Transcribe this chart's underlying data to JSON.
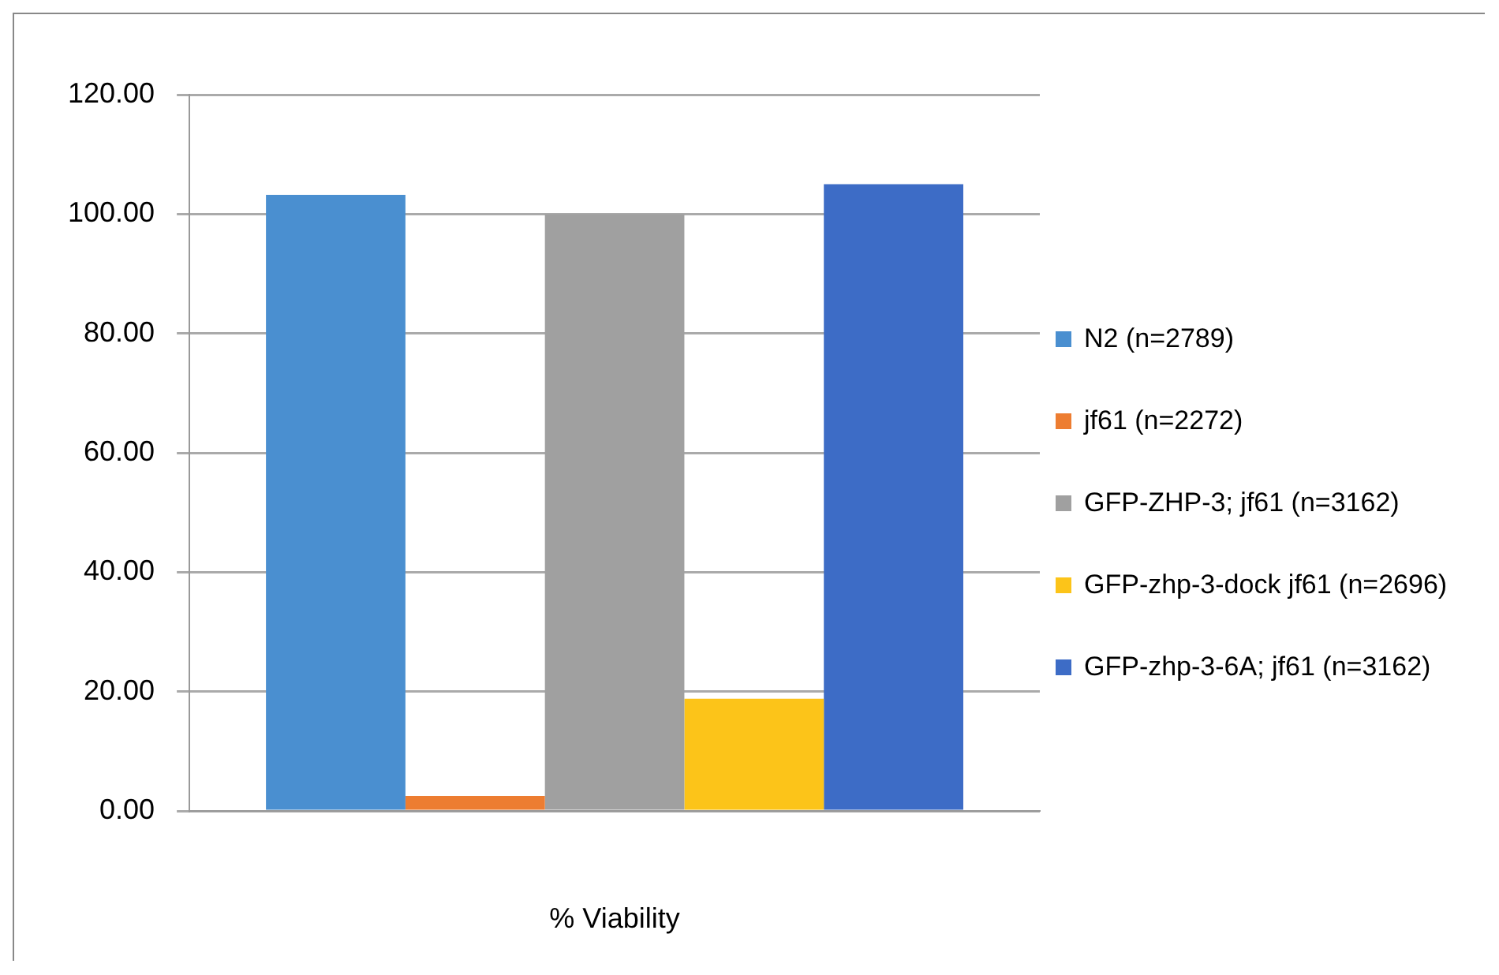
{
  "chart_data": {
    "type": "bar",
    "xlabel": "% Viability",
    "categories": [
      null
    ],
    "series": [
      {
        "name": "N2 (n=2789)",
        "color": "#4a8fd0",
        "values": [
          103.2
        ]
      },
      {
        "name": "jf61 (n=2272)",
        "color": "#ed7d31",
        "values": [
          2.5
        ]
      },
      {
        "name": "GFP-ZHP-3; jf61 (n=3162)",
        "color": "#a0a0a0",
        "values": [
          100
        ]
      },
      {
        "name": "GFP-zhp-3-dock jf61 (n=2696)",
        "color": "#fcc419",
        "values": [
          18.8
        ]
      },
      {
        "name": "GFP-zhp-3-6A; jf61 (n=3162)",
        "color": "#3d6cc6",
        "values": [
          105
        ]
      }
    ],
    "ylim": [
      0,
      120
    ],
    "yticks": [
      {
        "value": 0,
        "label": "0.00"
      },
      {
        "value": 20,
        "label": "20.00"
      },
      {
        "value": 40,
        "label": "40.00"
      },
      {
        "value": 60,
        "label": "60.00"
      },
      {
        "value": 80,
        "label": "80.00"
      },
      {
        "value": 100,
        "label": "100.00"
      },
      {
        "value": 120,
        "label": "120.00"
      }
    ],
    "grid": "y",
    "legend": "right"
  }
}
